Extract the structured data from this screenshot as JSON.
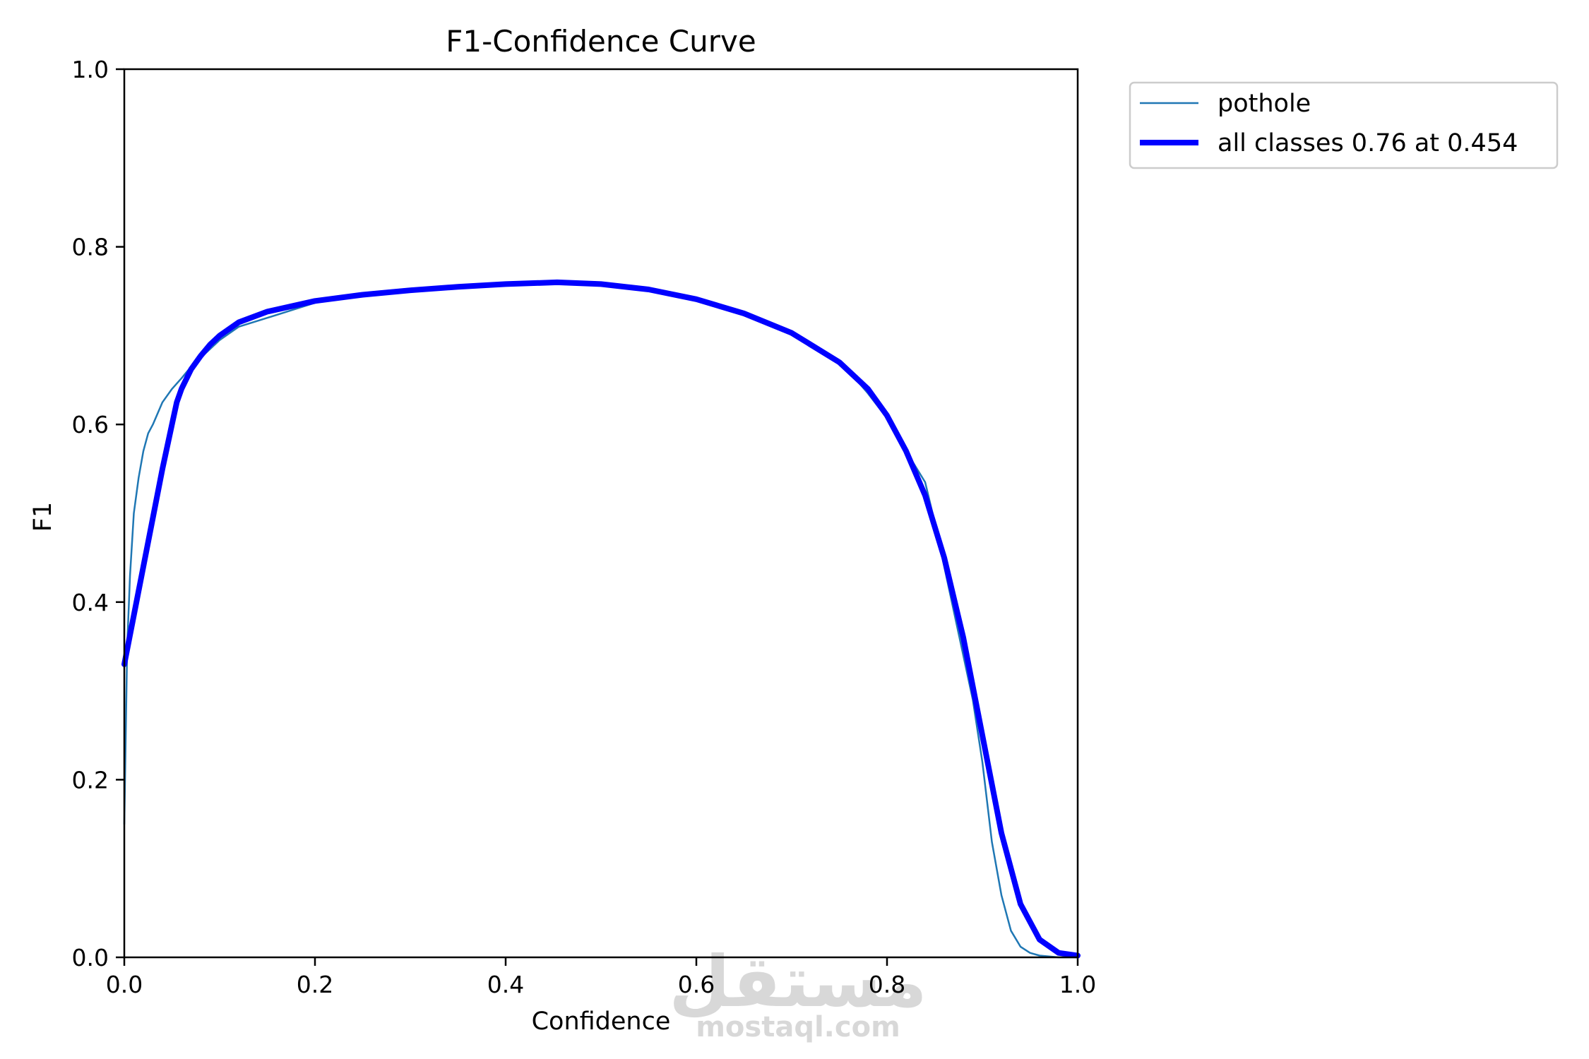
{
  "chart_data": {
    "type": "line",
    "title": "F1-Confidence Curve",
    "xlabel": "Confidence",
    "ylabel": "F1",
    "xlim": [
      0.0,
      1.0
    ],
    "ylim": [
      0.0,
      1.0
    ],
    "x_ticks": [
      "0.0",
      "0.2",
      "0.4",
      "0.6",
      "0.8",
      "1.0"
    ],
    "y_ticks": [
      "0.0",
      "0.2",
      "0.4",
      "0.6",
      "0.8",
      "1.0"
    ],
    "grid": false,
    "legend_position": "outside-top-right",
    "series": [
      {
        "name": "pothole",
        "color": "#1f77b4",
        "x": [
          0.0,
          0.003,
          0.006,
          0.01,
          0.015,
          0.02,
          0.025,
          0.03,
          0.04,
          0.05,
          0.06,
          0.07,
          0.08,
          0.09,
          0.1,
          0.12,
          0.15,
          0.2,
          0.25,
          0.3,
          0.35,
          0.4,
          0.454,
          0.5,
          0.55,
          0.6,
          0.65,
          0.7,
          0.73,
          0.76,
          0.78,
          0.8,
          0.82,
          0.84,
          0.85,
          0.86,
          0.87,
          0.88,
          0.89,
          0.9,
          0.91,
          0.92,
          0.93,
          0.94,
          0.95,
          0.96,
          0.97,
          0.98,
          0.99,
          1.0
        ],
        "y": [
          0.15,
          0.35,
          0.43,
          0.5,
          0.54,
          0.57,
          0.59,
          0.6,
          0.625,
          0.64,
          0.652,
          0.665,
          0.675,
          0.685,
          0.695,
          0.71,
          0.72,
          0.737,
          0.748,
          0.753,
          0.756,
          0.759,
          0.76,
          0.758,
          0.752,
          0.74,
          0.723,
          0.703,
          0.683,
          0.66,
          0.635,
          0.607,
          0.57,
          0.535,
          0.49,
          0.44,
          0.39,
          0.34,
          0.29,
          0.22,
          0.13,
          0.07,
          0.03,
          0.012,
          0.005,
          0.002,
          0.001,
          0.0,
          0.0,
          0.0
        ]
      },
      {
        "name": "all classes 0.76 at 0.454",
        "color": "#0000ff",
        "x": [
          0.0,
          0.01,
          0.02,
          0.03,
          0.04,
          0.05,
          0.055,
          0.06,
          0.07,
          0.08,
          0.09,
          0.1,
          0.12,
          0.15,
          0.2,
          0.25,
          0.3,
          0.35,
          0.4,
          0.454,
          0.5,
          0.55,
          0.6,
          0.65,
          0.7,
          0.75,
          0.78,
          0.8,
          0.82,
          0.84,
          0.86,
          0.88,
          0.9,
          0.92,
          0.94,
          0.96,
          0.98,
          1.0
        ],
        "y": [
          0.33,
          0.385,
          0.44,
          0.495,
          0.55,
          0.6,
          0.625,
          0.64,
          0.662,
          0.677,
          0.69,
          0.7,
          0.715,
          0.727,
          0.739,
          0.746,
          0.751,
          0.755,
          0.758,
          0.76,
          0.758,
          0.752,
          0.741,
          0.725,
          0.703,
          0.67,
          0.64,
          0.61,
          0.57,
          0.52,
          0.45,
          0.36,
          0.25,
          0.14,
          0.06,
          0.02,
          0.005,
          0.002
        ]
      }
    ]
  },
  "watermark": {
    "arabic": "مستقل",
    "latin": "mostaql.com"
  }
}
